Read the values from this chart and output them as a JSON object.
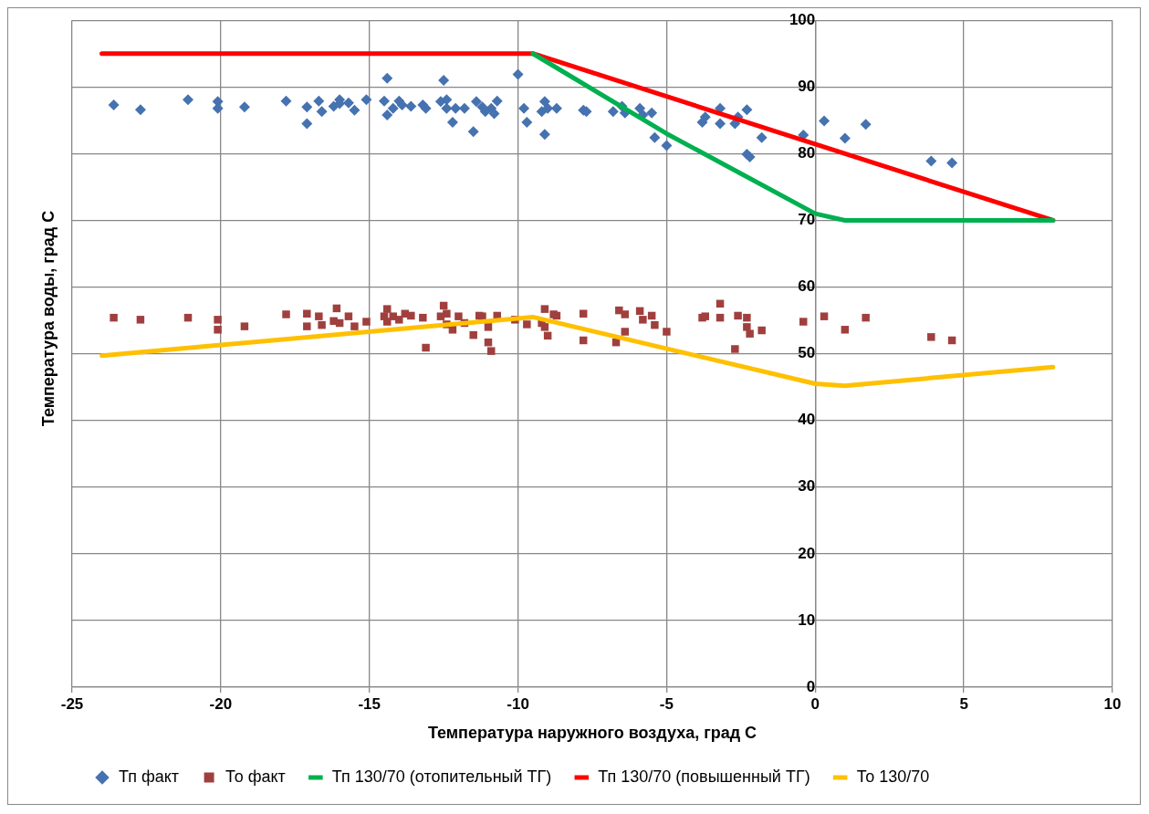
{
  "chart_data": {
    "type": "scatter",
    "xlabel": "Температура наружного воздуха, град С",
    "ylabel": "Температура воды, град С",
    "xlim": [
      -25,
      10
    ],
    "xticks": [
      -25,
      -20,
      -15,
      -10,
      -5,
      0,
      5,
      10
    ],
    "ylim": [
      0,
      100
    ],
    "yticks": [
      0,
      10,
      20,
      30,
      40,
      50,
      60,
      70,
      80,
      90,
      100
    ],
    "grid": true,
    "legend": "bottom",
    "series": [
      {
        "name": "Тп факт",
        "type": "scatter",
        "marker": "diamond",
        "color": "#4672b0",
        "x": [
          -23.6,
          -22.7,
          -21.1,
          -20.1,
          -20.1,
          -19.2,
          -17.8,
          -17.1,
          -17.1,
          -16.7,
          -16.6,
          -16.2,
          -16.0,
          -16.0,
          -15.7,
          -15.5,
          -15.1,
          -14.5,
          -14.4,
          -14.4,
          -14.2,
          -14.0,
          -13.9,
          -13.6,
          -13.2,
          -13.1,
          -12.5,
          -12.6,
          -12.4,
          -12.4,
          -12.2,
          -12.1,
          -11.8,
          -11.5,
          -11.4,
          -11.2,
          -11.1,
          -10.9,
          -10.8,
          -10.7,
          -10.0,
          -9.8,
          -9.7,
          -9.2,
          -9.1,
          -9.1,
          -9.0,
          -8.7,
          -7.8,
          -7.7,
          -6.8,
          -6.5,
          -6.4,
          -5.9,
          -5.8,
          -5.5,
          -5.4,
          -5.0,
          -3.8,
          -3.7,
          -3.2,
          -3.2,
          -2.7,
          -2.6,
          -2.3,
          -2.3,
          -2.2,
          -1.8,
          -0.4,
          0.3,
          1.0,
          1.7,
          3.9,
          4.6
        ],
        "values": [
          87.3,
          86.6,
          88.1,
          87.8,
          86.8,
          87.0,
          87.9,
          87.0,
          84.5,
          87.9,
          86.3,
          87.1,
          88.1,
          87.5,
          87.6,
          86.5,
          88.1,
          87.9,
          91.3,
          85.8,
          86.8,
          87.9,
          87.3,
          87.1,
          87.3,
          86.8,
          91.0,
          87.8,
          88.1,
          86.8,
          84.7,
          86.8,
          86.8,
          83.3,
          87.8,
          87.0,
          86.3,
          86.8,
          86.0,
          87.9,
          91.9,
          86.8,
          84.7,
          86.3,
          82.9,
          87.8,
          86.8,
          86.8,
          86.5,
          86.3,
          86.3,
          87.1,
          86.1,
          86.8,
          85.8,
          86.1,
          82.4,
          81.2,
          84.7,
          85.5,
          86.8,
          84.5,
          84.5,
          85.5,
          86.6,
          79.9,
          79.5,
          82.4,
          82.8,
          84.9,
          82.3,
          84.4,
          78.9,
          78.6
        ]
      },
      {
        "name": "То факт",
        "type": "scatter",
        "marker": "square",
        "color": "#a0403e",
        "x": [
          -23.6,
          -22.7,
          -21.1,
          -20.1,
          -20.1,
          -19.2,
          -17.8,
          -17.1,
          -17.1,
          -16.7,
          -16.6,
          -16.1,
          -16.2,
          -16.0,
          -15.7,
          -15.5,
          -15.1,
          -14.5,
          -14.4,
          -14.4,
          -14.2,
          -14.0,
          -13.8,
          -13.6,
          -13.2,
          -13.1,
          -12.5,
          -12.6,
          -12.4,
          -12.4,
          -12.2,
          -12.0,
          -11.8,
          -11.5,
          -11.3,
          -11.2,
          -11.0,
          -11.0,
          -10.9,
          -10.7,
          -10.1,
          -9.7,
          -9.2,
          -9.1,
          -9.1,
          -9.0,
          -8.8,
          -8.7,
          -7.8,
          -7.8,
          -6.7,
          -6.6,
          -6.4,
          -6.4,
          -5.9,
          -5.8,
          -5.5,
          -5.4,
          -5.0,
          -3.8,
          -3.7,
          -3.2,
          -3.2,
          -2.7,
          -2.6,
          -2.3,
          -2.3,
          -2.2,
          -1.8,
          -0.4,
          0.3,
          1.0,
          1.7,
          3.9,
          4.6
        ],
        "values": [
          55.4,
          55.1,
          55.4,
          55.1,
          53.6,
          54.1,
          55.9,
          56.0,
          54.1,
          55.6,
          54.3,
          56.8,
          54.9,
          54.6,
          55.6,
          54.1,
          54.8,
          55.6,
          56.7,
          54.8,
          55.6,
          55.1,
          56.0,
          55.7,
          55.4,
          50.9,
          57.2,
          55.6,
          56.0,
          54.4,
          53.6,
          55.6,
          54.6,
          52.8,
          55.7,
          55.6,
          54.0,
          51.7,
          50.4,
          55.7,
          55.1,
          54.4,
          54.6,
          56.7,
          54.0,
          52.7,
          55.9,
          55.7,
          56.0,
          52.0,
          51.7,
          56.5,
          55.9,
          53.3,
          56.4,
          55.1,
          55.7,
          54.3,
          53.3,
          55.4,
          55.6,
          57.5,
          55.4,
          50.7,
          55.7,
          55.4,
          54.0,
          53.0,
          53.5,
          54.8,
          55.6,
          53.6,
          55.4,
          52.5,
          52.0
        ]
      },
      {
        "name": "Тп 130/70 (отопительный ТГ)",
        "type": "line",
        "marker": "none",
        "color": "#00b050",
        "x": [
          -9.5,
          -5,
          -2.5,
          0,
          1,
          8
        ],
        "values": [
          95,
          83,
          77,
          71,
          70,
          70
        ]
      },
      {
        "name": "Тп 130/70 (повышенный ТГ)",
        "type": "line",
        "marker": "none",
        "color": "#ff0000",
        "x": [
          -24,
          -9.5,
          8
        ],
        "values": [
          95,
          95,
          70
        ]
      },
      {
        "name": "То 130/70",
        "type": "line",
        "marker": "none",
        "color": "#ffc000",
        "x": [
          -24,
          -9.5,
          0,
          1,
          8
        ],
        "values": [
          49.7,
          55.5,
          45.5,
          45.2,
          48
        ]
      }
    ]
  }
}
